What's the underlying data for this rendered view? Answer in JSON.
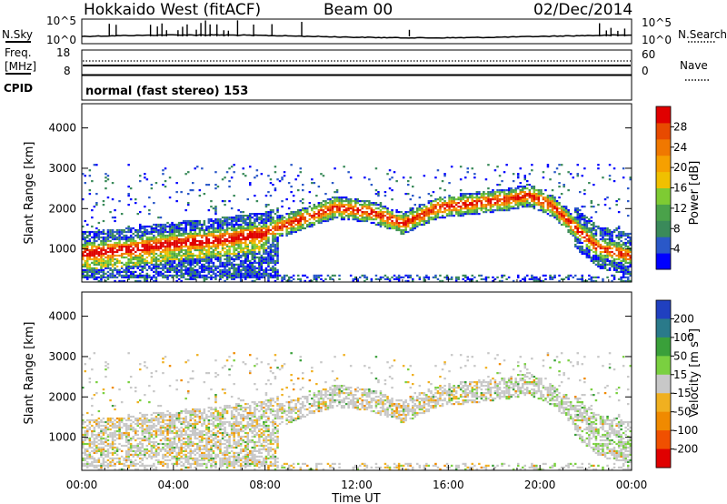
{
  "header": {
    "title": "Hokkaido West (fitACF)",
    "beam": "Beam 00",
    "date": "02/Dec/2014"
  },
  "noise_panel": {
    "left_label": "N.Sky",
    "right_label": "N.Search",
    "left_ticks": [
      "10^5",
      "10^0"
    ],
    "right_ticks": [
      "10^5",
      "10^0"
    ]
  },
  "freq_panel": {
    "left_label_line1": "Freq.",
    "left_label_line2": "[MHz]",
    "left_ticks": [
      "18",
      "8"
    ],
    "right_label": "Nave",
    "right_ticks": [
      "60",
      "0"
    ]
  },
  "cpid_panel": {
    "label": "CPID",
    "text": "normal (fast stereo) 153"
  },
  "chart_data": [
    {
      "type": "heatmap",
      "title": "",
      "xlabel": "Time UT",
      "ylabel": "Slant Range [km]",
      "x_ticks": [
        "00:00",
        "04:00",
        "08:00",
        "12:00",
        "16:00",
        "20:00",
        "00:00"
      ],
      "y_ticks": [
        "1000",
        "2000",
        "3000",
        "4000"
      ],
      "xlim_hours": [
        0,
        24
      ],
      "ylim_km": [
        180,
        4600
      ],
      "colorbar_label": "Power [dB]",
      "colorbar_ticks": [
        "28",
        "24",
        "20",
        "16",
        "12",
        "8",
        "4"
      ],
      "colorbar_colors": [
        "#0000ff",
        "#2a58c8",
        "#3a8a5a",
        "#4aa24a",
        "#7ecb33",
        "#f0c000",
        "#f6a000",
        "#f07800",
        "#e84a00",
        "#e00000"
      ],
      "echo_band_center_km": {
        "hours": [
          0,
          2,
          4,
          6,
          8,
          9.5,
          11,
          12.5,
          14,
          15.5,
          17,
          18.5,
          19.5,
          20.5,
          21.5,
          22.5,
          24
        ],
        "km": [
          900,
          1000,
          1150,
          1250,
          1400,
          1700,
          2000,
          1900,
          1600,
          2000,
          2100,
          2200,
          2300,
          2050,
          1500,
          1000,
          800
        ]
      }
    },
    {
      "type": "heatmap",
      "title": "",
      "xlabel": "Time UT",
      "ylabel": "Slant Range [km]",
      "x_ticks": [
        "00:00",
        "04:00",
        "08:00",
        "12:00",
        "16:00",
        "20:00",
        "00:00"
      ],
      "y_ticks": [
        "1000",
        "2000",
        "3000",
        "4000"
      ],
      "xlim_hours": [
        0,
        24
      ],
      "ylim_km": [
        180,
        4600
      ],
      "colorbar_label": "Velocity [m s^-1]",
      "colorbar_ticks": [
        "200",
        "100",
        "50",
        "15",
        "-15",
        "-50",
        "-100",
        "-200"
      ],
      "colorbar_colors": [
        "#2040c0",
        "#2a7a8a",
        "#3aa03a",
        "#7ad040",
        "#c8c8c8",
        "#f0b020",
        "#f08a00",
        "#f05000",
        "#e00000"
      ]
    }
  ]
}
